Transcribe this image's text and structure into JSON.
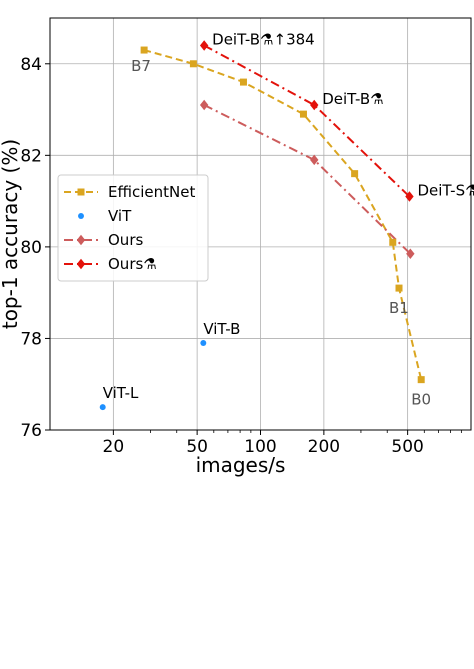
{
  "chart_data": {
    "type": "line",
    "xlabel": "images/s",
    "ylabel": "top-1 accuracy (%)",
    "xscale": "log",
    "xlim": [
      10,
      1000
    ],
    "ylim": [
      76,
      85
    ],
    "grid": true,
    "legend": "center-left",
    "xticks": [
      {
        "value": 20,
        "label": "20"
      },
      {
        "value": 50,
        "label": "50"
      },
      {
        "value": 100,
        "label": "100"
      },
      {
        "value": 200,
        "label": "200"
      },
      {
        "value": 500,
        "label": "500"
      }
    ],
    "yticks": [
      {
        "value": 76,
        "label": "76"
      },
      {
        "value": 78,
        "label": "78"
      },
      {
        "value": 80,
        "label": "80"
      },
      {
        "value": 82,
        "label": "82"
      },
      {
        "value": 84,
        "label": "84"
      }
    ],
    "series": [
      {
        "name": "EfficientNet",
        "color": "#daa520",
        "marker": "square",
        "dash": "dashed",
        "points": [
          {
            "x": 28,
            "y": 84.3
          },
          {
            "x": 48,
            "y": 84.0
          },
          {
            "x": 83,
            "y": 83.6
          },
          {
            "x": 160,
            "y": 82.9
          },
          {
            "x": 280,
            "y": 81.6
          },
          {
            "x": 425,
            "y": 80.1
          },
          {
            "x": 455,
            "y": 79.1
          },
          {
            "x": 580,
            "y": 77.1
          }
        ]
      },
      {
        "name": "ViT",
        "color": "#1e90ff",
        "marker": "circle",
        "dash": "none",
        "points": [
          {
            "x": 17.8,
            "y": 76.5
          },
          {
            "x": 53.5,
            "y": 77.9
          }
        ]
      },
      {
        "name": "Ours",
        "color": "#cd5c5c",
        "marker": "diamond",
        "dash": "dashdot",
        "points": [
          {
            "x": 54,
            "y": 83.1
          },
          {
            "x": 180,
            "y": 81.9
          },
          {
            "x": 515,
            "y": 79.85
          }
        ]
      },
      {
        "name": "Ours⚗",
        "color": "#e3120b",
        "marker": "diamond",
        "dash": "dashdot",
        "points": [
          {
            "x": 54,
            "y": 84.4
          },
          {
            "x": 180,
            "y": 83.1
          },
          {
            "x": 510,
            "y": 81.1
          }
        ]
      }
    ],
    "annotations": [
      {
        "text": "B7",
        "x": 28,
        "y": 84.3,
        "color": "#555555",
        "pos": "below-left"
      },
      {
        "text": "B1",
        "x": 455,
        "y": 79.1,
        "color": "#555555",
        "pos": "below"
      },
      {
        "text": "B0",
        "x": 580,
        "y": 77.1,
        "color": "#555555",
        "pos": "below"
      },
      {
        "text": "ViT-L",
        "x": 17.8,
        "y": 76.5,
        "color": "#000000",
        "pos": "above-right"
      },
      {
        "text": "ViT-B",
        "x": 53.5,
        "y": 77.9,
        "color": "#000000",
        "pos": "above-right"
      },
      {
        "text": "DeiT-B⚗↑384",
        "x": 54,
        "y": 84.4,
        "color": "#000000",
        "pos": "right"
      },
      {
        "text": "DeiT-B⚗",
        "x": 180,
        "y": 83.1,
        "color": "#000000",
        "pos": "right"
      },
      {
        "text": "DeiT-S⚗",
        "x": 510,
        "y": 81.1,
        "color": "#000000",
        "pos": "right"
      }
    ]
  }
}
